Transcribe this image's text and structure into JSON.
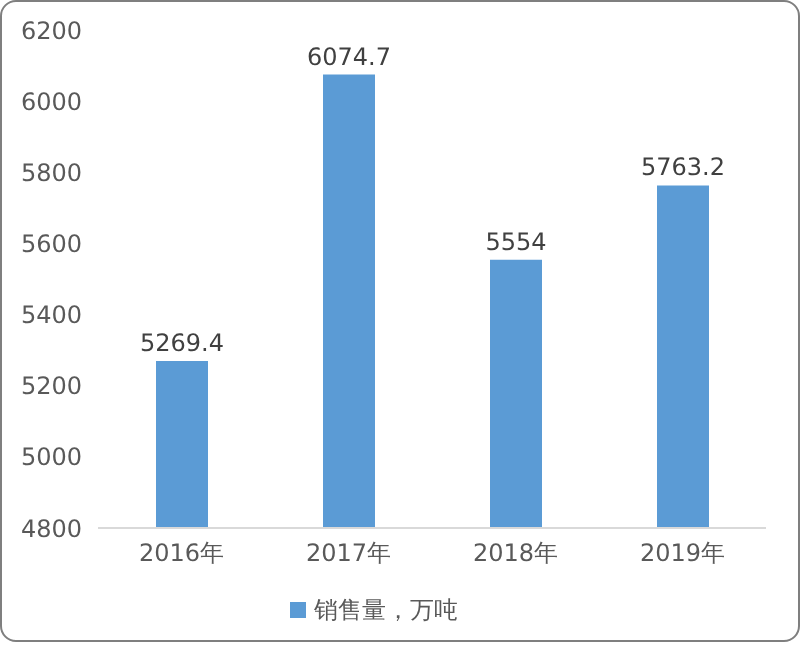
{
  "chart_data": {
    "type": "bar",
    "categories": [
      "2016年",
      "2017年",
      "2018年",
      "2019年"
    ],
    "series": [
      {
        "name": "销售量，万吨",
        "color": "#5b9bd5",
        "values": [
          5269.4,
          6074.7,
          5554,
          5763.2
        ]
      }
    ],
    "ylim": [
      4800,
      6200
    ],
    "yticks": [
      4800,
      5000,
      5200,
      5400,
      5600,
      5800,
      6000,
      6200
    ],
    "grid": false,
    "legend": "bottom",
    "data_labels": true
  }
}
